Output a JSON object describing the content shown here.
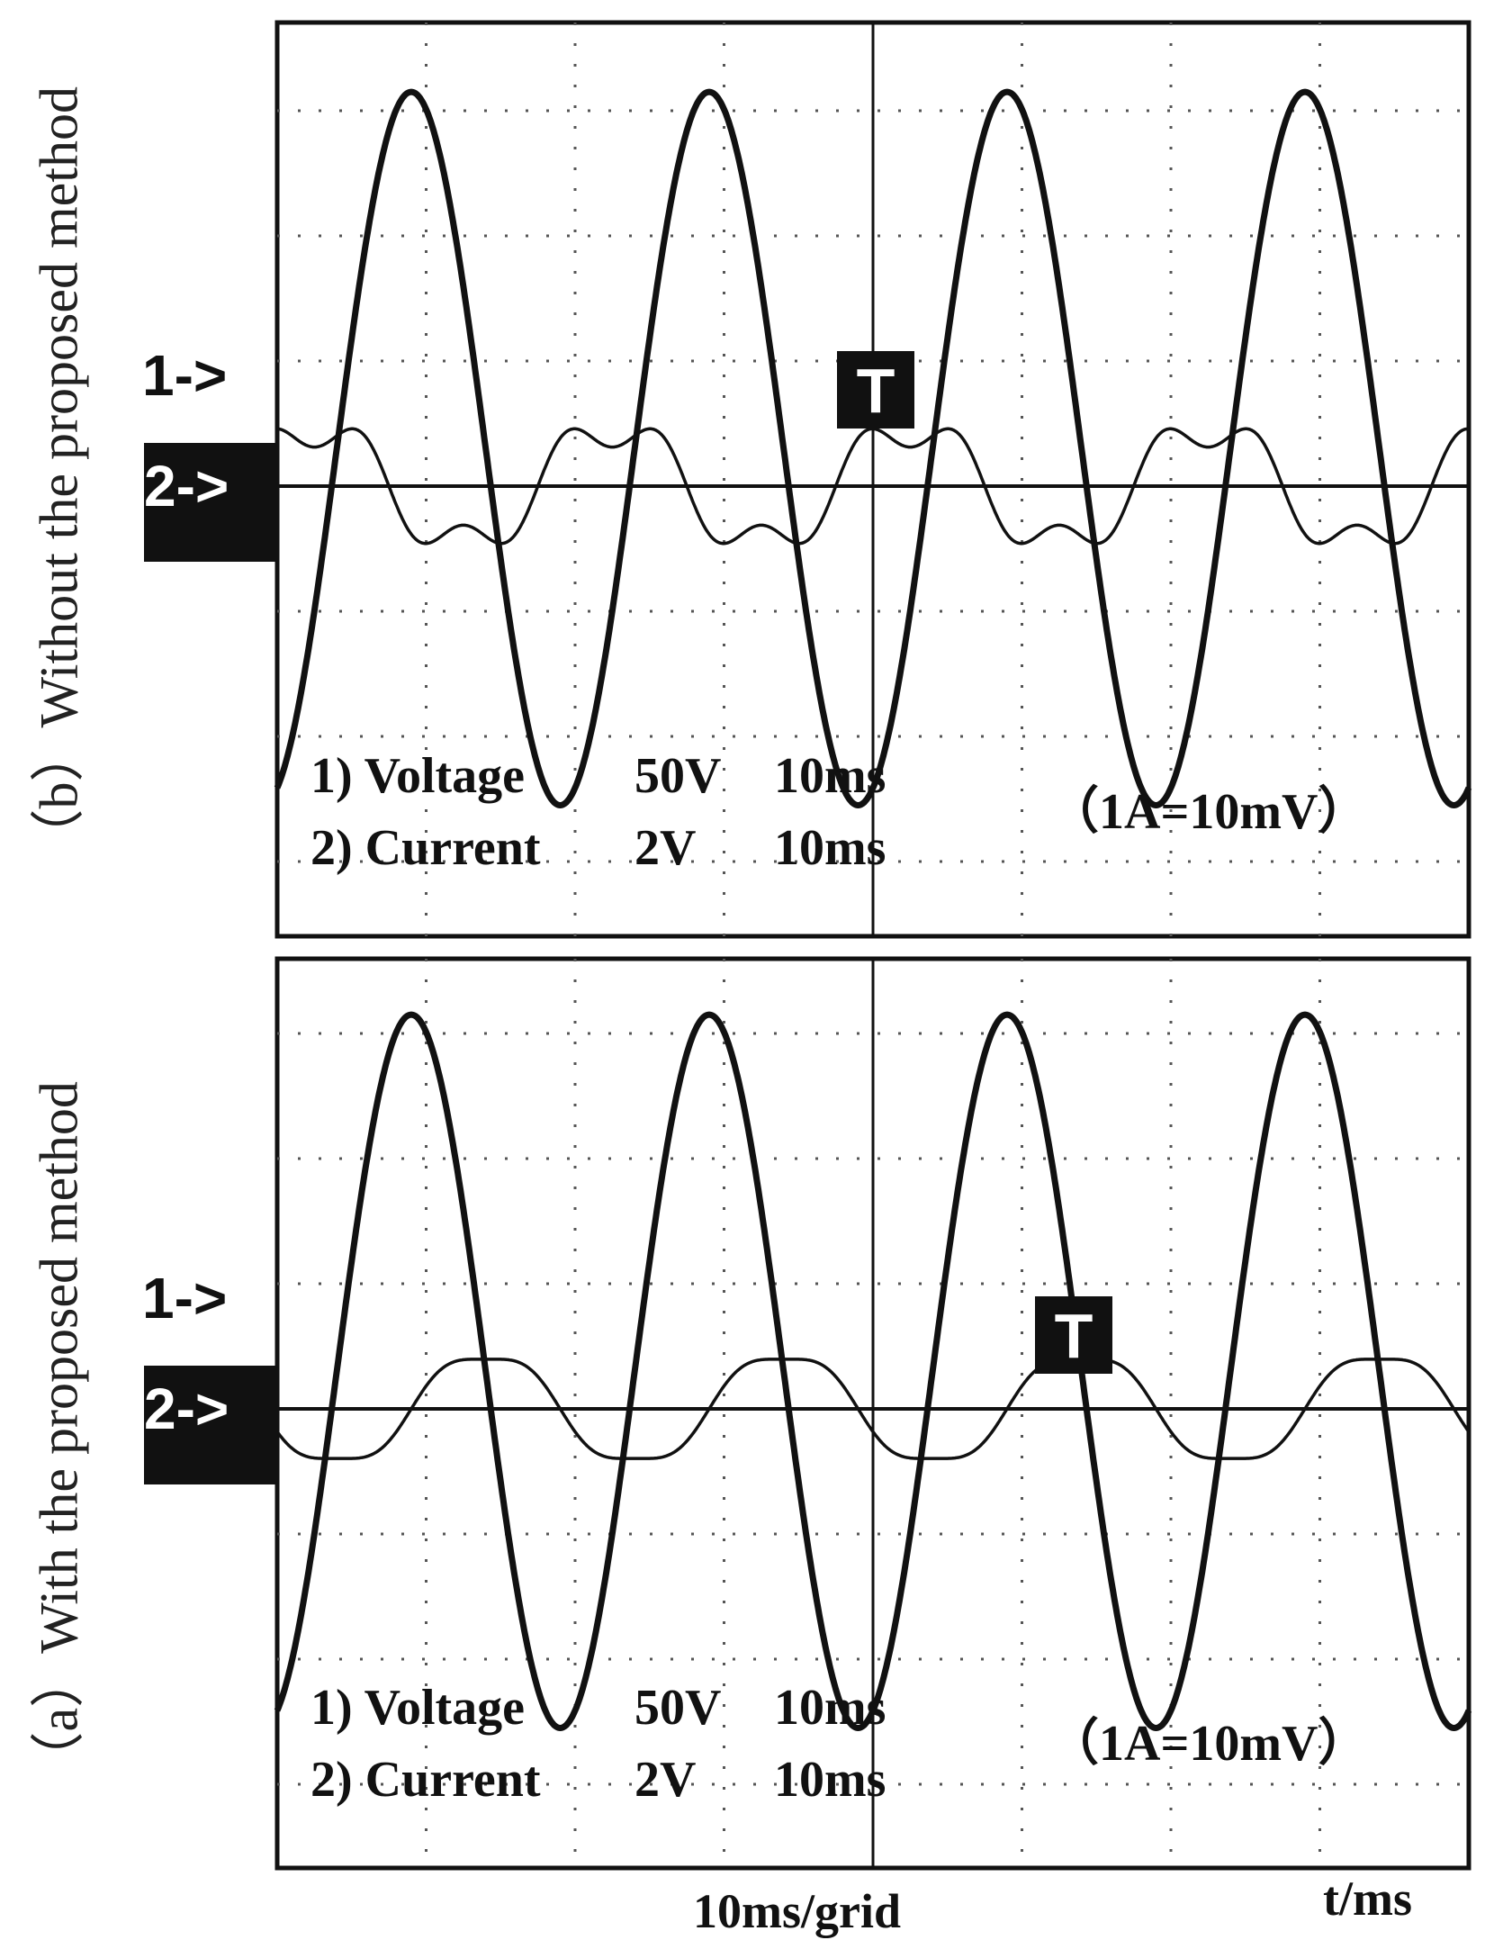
{
  "chart_data": [
    {
      "type": "line",
      "panel_label": "（b）Without the proposed method",
      "x_divisions": 8,
      "y_divisions": 6,
      "series": [
        {
          "name": "1) Voltage",
          "scale": "50V",
          "timebase": "10ms",
          "amplitude_div": 3.0,
          "period_div": 2.0,
          "phase_div": 0.9,
          "marker": "1->"
        },
        {
          "name": "2) Current",
          "scale": "2V",
          "timebase": "10ms",
          "amplitude_div": 0.6,
          "period_div": 2.0,
          "phase_div": 1.75,
          "marker": "2->",
          "shape": "distorted"
        }
      ],
      "note": "（1A=10mV）",
      "trigger_label": "T",
      "grid": true
    },
    {
      "type": "line",
      "panel_label": "（a）With the proposed method",
      "x_divisions": 8,
      "y_divisions": 6,
      "series": [
        {
          "name": "1) Voltage",
          "scale": "50V",
          "timebase": "10ms",
          "amplitude_div": 3.0,
          "period_div": 2.0,
          "phase_div": 0.9,
          "marker": "1->"
        },
        {
          "name": "2) Current",
          "scale": "2V",
          "timebase": "10ms",
          "amplitude_div": 0.45,
          "period_div": 2.0,
          "phase_div": 0.9,
          "marker": "2->",
          "shape": "near-sinusoidal"
        }
      ],
      "note": "（1A=10mV）",
      "trigger_label": "T",
      "grid": true
    }
  ],
  "footer": {
    "xaxis_note": "10ms/grid",
    "xlabel": "t/ms"
  },
  "colors": {
    "trace": "#111111",
    "grid": "#555555",
    "background": "#ffffff"
  }
}
